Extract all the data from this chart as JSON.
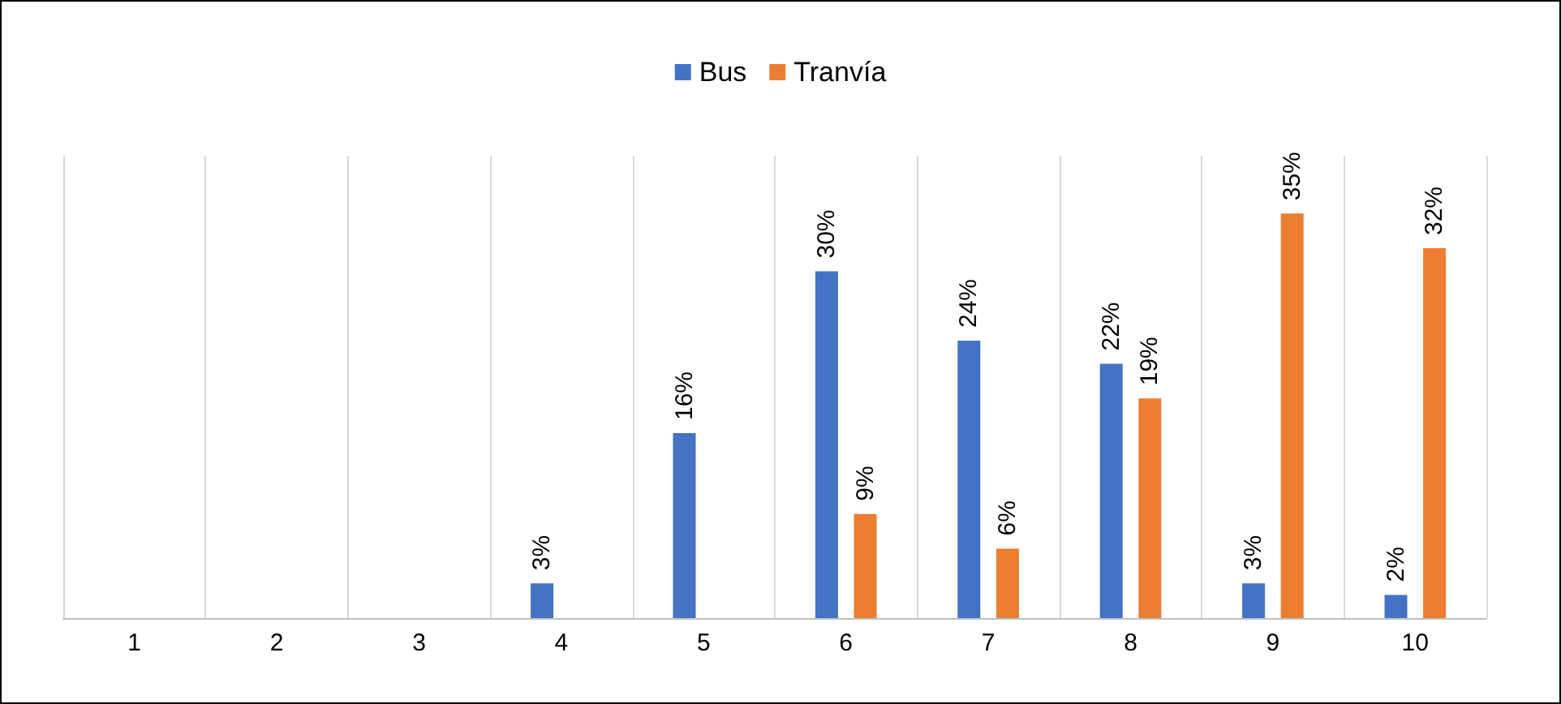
{
  "chart_data": {
    "type": "bar",
    "categories": [
      "1",
      "2",
      "3",
      "4",
      "5",
      "6",
      "7",
      "8",
      "9",
      "10"
    ],
    "series": [
      {
        "name": "Bus",
        "color": "#4472c4",
        "values": [
          null,
          null,
          null,
          3,
          16,
          30,
          24,
          22,
          3,
          2
        ],
        "value_labels": [
          null,
          null,
          null,
          "3%",
          "16%",
          "30%",
          "24%",
          "22%",
          "3%",
          "2%"
        ]
      },
      {
        "name": "Tranvía",
        "color": "#ed7d31",
        "values": [
          null,
          null,
          null,
          null,
          null,
          9,
          6,
          19,
          35,
          32
        ],
        "value_labels": [
          null,
          null,
          null,
          null,
          null,
          "9%",
          "6%",
          "19%",
          "35%",
          "32%"
        ]
      }
    ],
    "grid": "x",
    "legend": "top"
  }
}
